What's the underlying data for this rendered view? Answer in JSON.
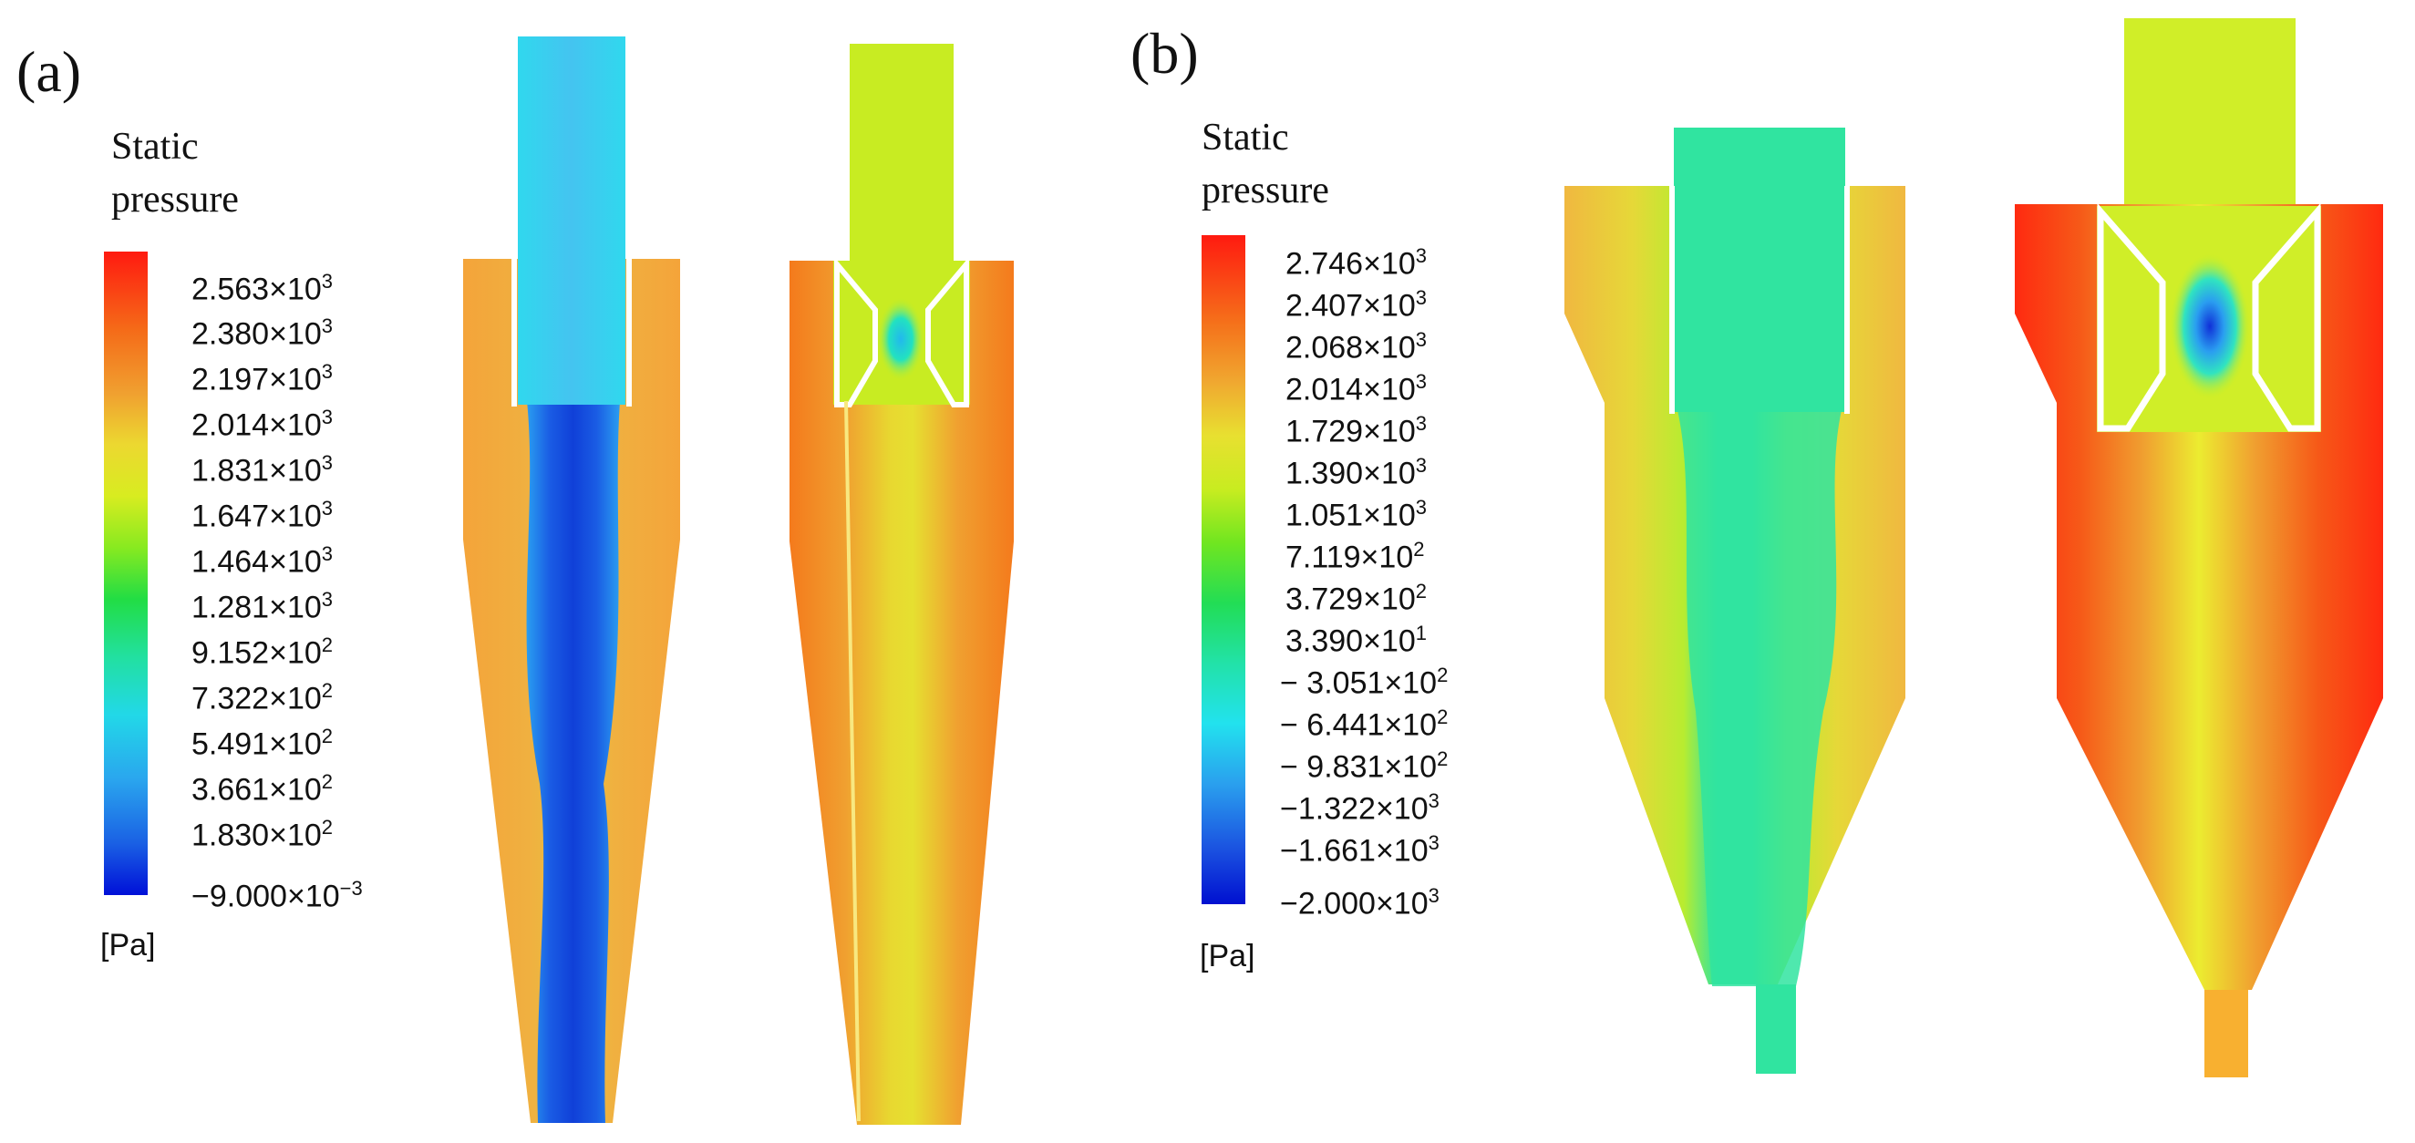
{
  "panels": [
    {
      "label": "(a)",
      "legend": {
        "title_line1": "Static",
        "title_line2": "pressure",
        "unit": "[Pa]",
        "ticks": [
          {
            "mant": "2.563×10",
            "exp": "3"
          },
          {
            "mant": "2.380×10",
            "exp": "3"
          },
          {
            "mant": "2.197×10",
            "exp": "3"
          },
          {
            "mant": "2.014×10",
            "exp": "3"
          },
          {
            "mant": "1.831×10",
            "exp": "3"
          },
          {
            "mant": "1.647×10",
            "exp": "3"
          },
          {
            "mant": "1.464×10",
            "exp": "3"
          },
          {
            "mant": "1.281×10",
            "exp": "3"
          },
          {
            "mant": "9.152×10",
            "exp": "2"
          },
          {
            "mant": "7.322×10",
            "exp": "2"
          },
          {
            "mant": "5.491×10",
            "exp": "2"
          },
          {
            "mant": "3.661×10",
            "exp": "2"
          },
          {
            "mant": "1.830×10",
            "exp": "2"
          },
          {
            "mant": "−9.000×10",
            "exp": "−3"
          }
        ]
      }
    },
    {
      "label": "(b)",
      "legend": {
        "title_line1": "Static",
        "title_line2": "pressure",
        "unit": "[Pa]",
        "ticks": [
          {
            "mant": "2.746×10",
            "exp": "3"
          },
          {
            "mant": "2.407×10",
            "exp": "3"
          },
          {
            "mant": "2.068×10",
            "exp": "3"
          },
          {
            "mant": "2.014×10",
            "exp": "3"
          },
          {
            "mant": "1.729×10",
            "exp": "3"
          },
          {
            "mant": "1.390×10",
            "exp": "3"
          },
          {
            "mant": "1.051×10",
            "exp": "3"
          },
          {
            "mant": "7.119×10",
            "exp": "2"
          },
          {
            "mant": "3.729×10",
            "exp": "2"
          },
          {
            "mant": "3.390×10",
            "exp": "1"
          },
          {
            "mant": "− 3.051×10",
            "exp": "2"
          },
          {
            "mant": "− 6.441×10",
            "exp": "2"
          },
          {
            "mant": "− 9.831×10",
            "exp": "2"
          },
          {
            "mant": "−1.322×10",
            "exp": "3"
          },
          {
            "mant": "−1.661×10",
            "exp": "3"
          },
          {
            "mant": "−2.000×10",
            "exp": "3"
          }
        ]
      }
    }
  ],
  "colors": {
    "red": "#ff2a10",
    "orange": "#f58a1e",
    "amber": "#f0b030",
    "yellow": "#eeee22",
    "lime": "#c8f020",
    "green": "#22dd55",
    "teal": "#22e4a8",
    "cyan": "#22e8ee",
    "sky": "#44aaee",
    "blue": "#1040e0",
    "navy": "#0010cc"
  }
}
